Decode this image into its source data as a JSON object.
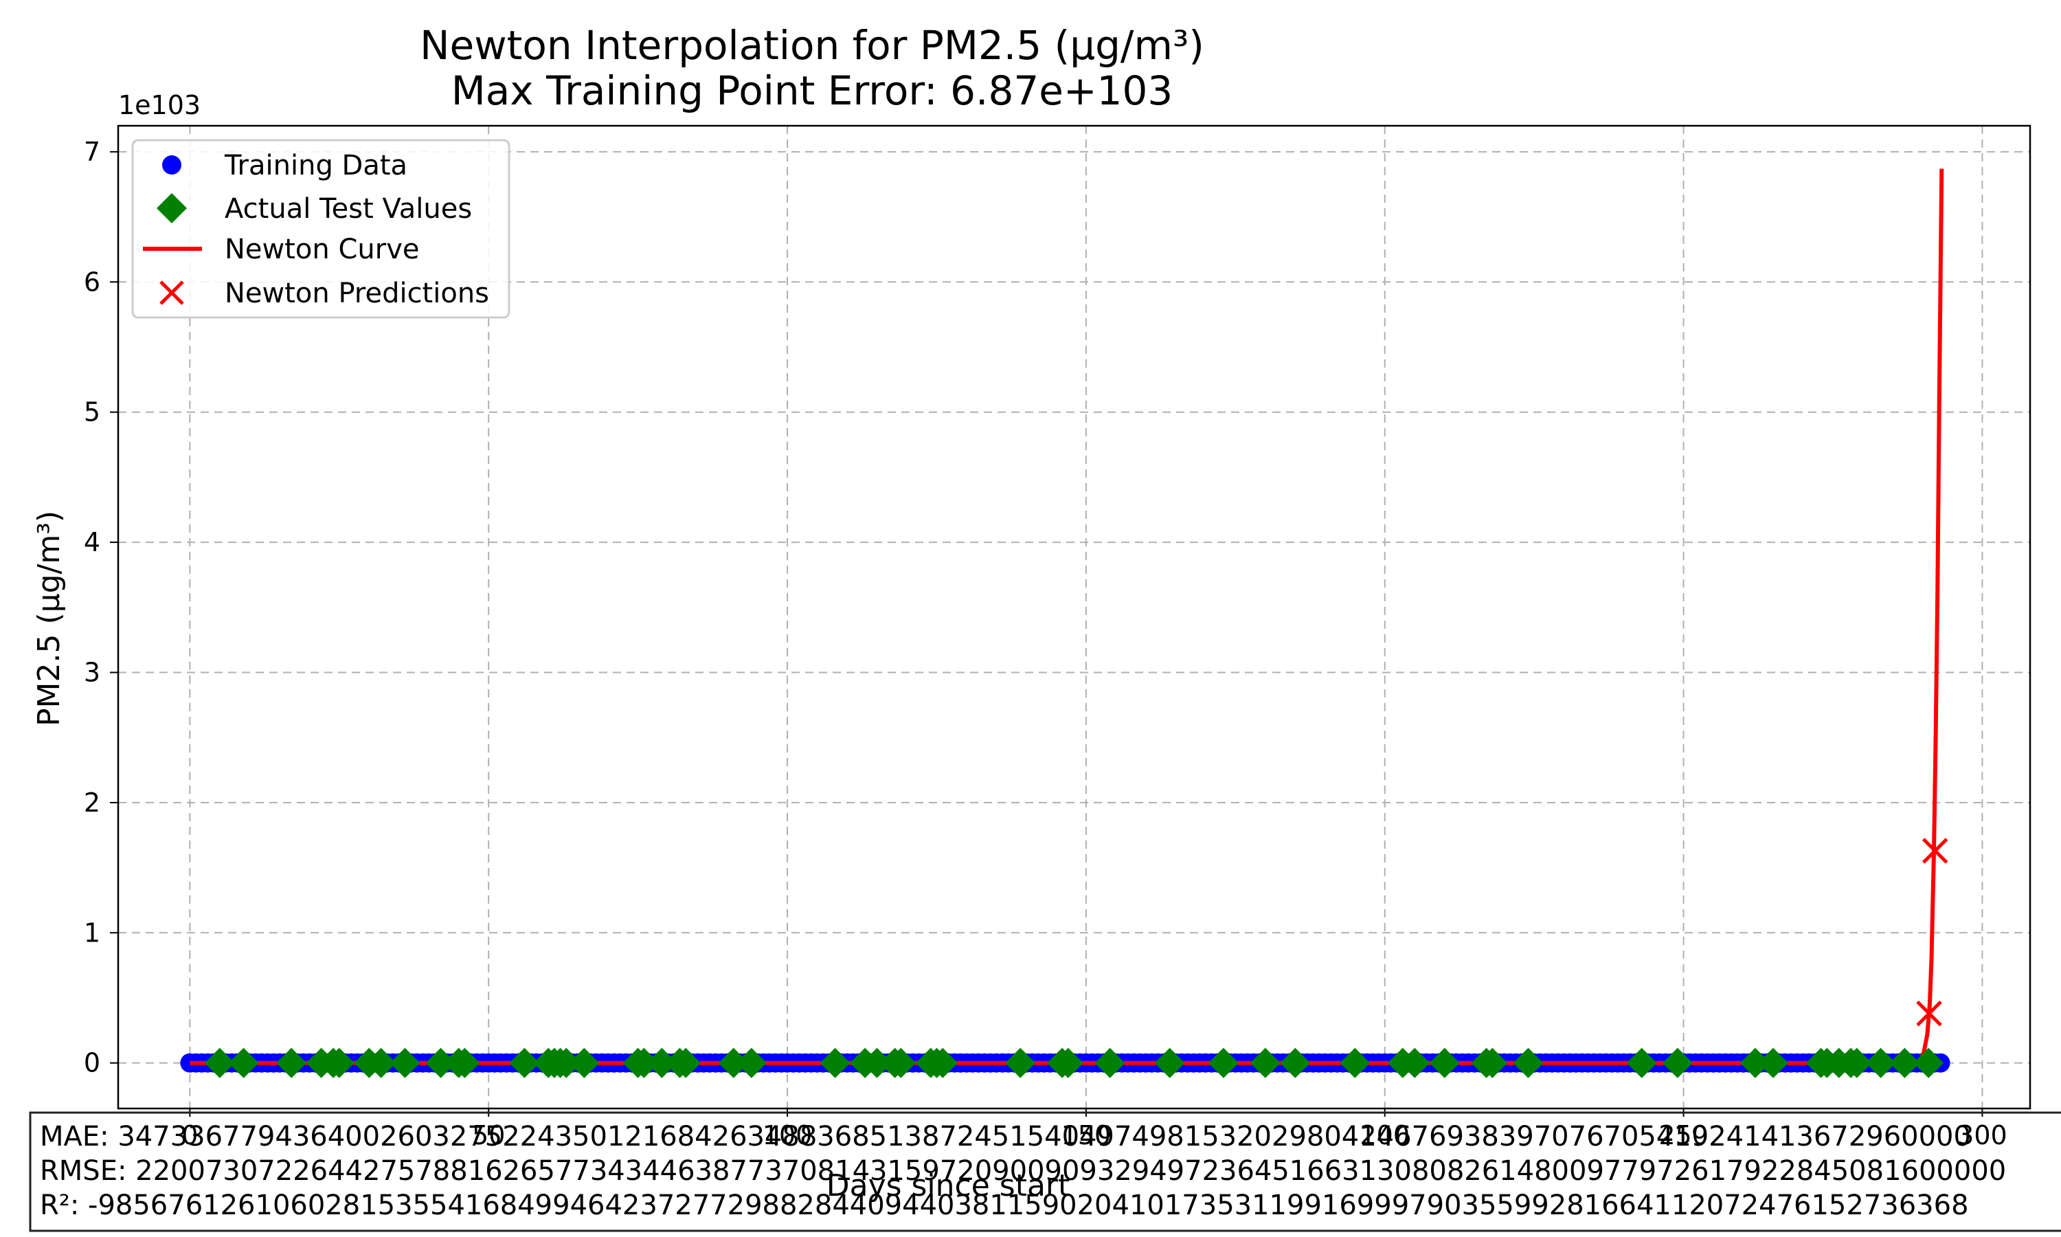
{
  "chart_data": {
    "type": "line",
    "title": "Newton Interpolation for PM2.5 (μg/m³)",
    "subtitle": "Max Training Point Error: 6.87e+103",
    "xlabel": "Days since start",
    "ylabel": "PM2.5 (μg/m³)",
    "y_offset_text": "1e103",
    "xlim": [
      -12,
      308
    ],
    "ylim": [
      -0.35,
      7.2
    ],
    "y_scale_note": "y values in units of 1e103",
    "grid": true,
    "legend_position": "upper-left",
    "x_ticks": [
      {
        "value": 0,
        "label": "0"
      },
      {
        "value": 50,
        "label": "50"
      },
      {
        "value": 100,
        "label": "100"
      },
      {
        "value": 150,
        "label": "150"
      },
      {
        "value": 200,
        "label": "200"
      },
      {
        "value": 250,
        "label": "250"
      },
      {
        "value": 300,
        "label": "300"
      }
    ],
    "y_ticks": [
      {
        "value": 0,
        "label": "0"
      },
      {
        "value": 1,
        "label": "1"
      },
      {
        "value": 2,
        "label": "2"
      },
      {
        "value": 3,
        "label": "3"
      },
      {
        "value": 4,
        "label": "4"
      },
      {
        "value": 5,
        "label": "5"
      },
      {
        "value": 6,
        "label": "6"
      },
      {
        "value": 7,
        "label": "7"
      }
    ],
    "series": [
      {
        "name": "Training Data",
        "kind": "scatter",
        "marker": "circle",
        "color": "#0000ff",
        "x_start": 0,
        "x_end": 293,
        "x_step": 1,
        "y": 0
      },
      {
        "name": "Actual Test Values",
        "kind": "scatter",
        "marker": "diamond",
        "color": "#008000",
        "x": [
          5,
          9,
          17,
          22,
          24,
          25,
          30,
          32,
          36,
          42,
          45,
          46,
          56,
          60,
          61,
          62,
          63,
          66,
          75,
          76,
          79,
          82,
          83,
          91,
          94,
          108,
          113,
          115,
          118,
          119,
          124,
          125,
          126,
          139,
          146,
          147,
          154,
          164,
          173,
          180,
          185,
          195,
          203,
          205,
          210,
          217,
          218,
          224,
          243,
          249,
          262,
          265,
          273,
          274,
          276,
          278,
          279,
          283,
          287,
          291
        ],
        "y": 0
      },
      {
        "name": "Newton Curve",
        "kind": "line",
        "color": "#ff0000",
        "x": [
          0,
          240,
          289,
          289.6,
          290.2,
          290.8,
          291.2,
          291.5,
          291.7,
          291.9,
          292.2,
          292.5,
          292.8,
          293.2
        ],
        "y": [
          0,
          0,
          0,
          0.02,
          0.08,
          0.22,
          0.45,
          0.8,
          1.2,
          1.62,
          2.5,
          3.6,
          5.1,
          6.87
        ]
      },
      {
        "name": "Newton Predictions",
        "kind": "scatter",
        "marker": "x",
        "color": "#ff0000",
        "x": [
          291.1,
          292.1
        ],
        "y": [
          0.38,
          1.63
        ]
      }
    ],
    "metrics": {
      "mae": "MAE: 3473367794364002603275224350121684263488368513872451540497498153202980414676938397076705419241413672960000",
      "rmse": "RMSE: 22007307226442757881626577343446387737081431597209009093294972364516631308082614800977972617922845081600000",
      "r2": "R²: -98567612610602815355416849946423727729882844094403811590204101735311991699979035599281664112072476152736368"
    }
  }
}
